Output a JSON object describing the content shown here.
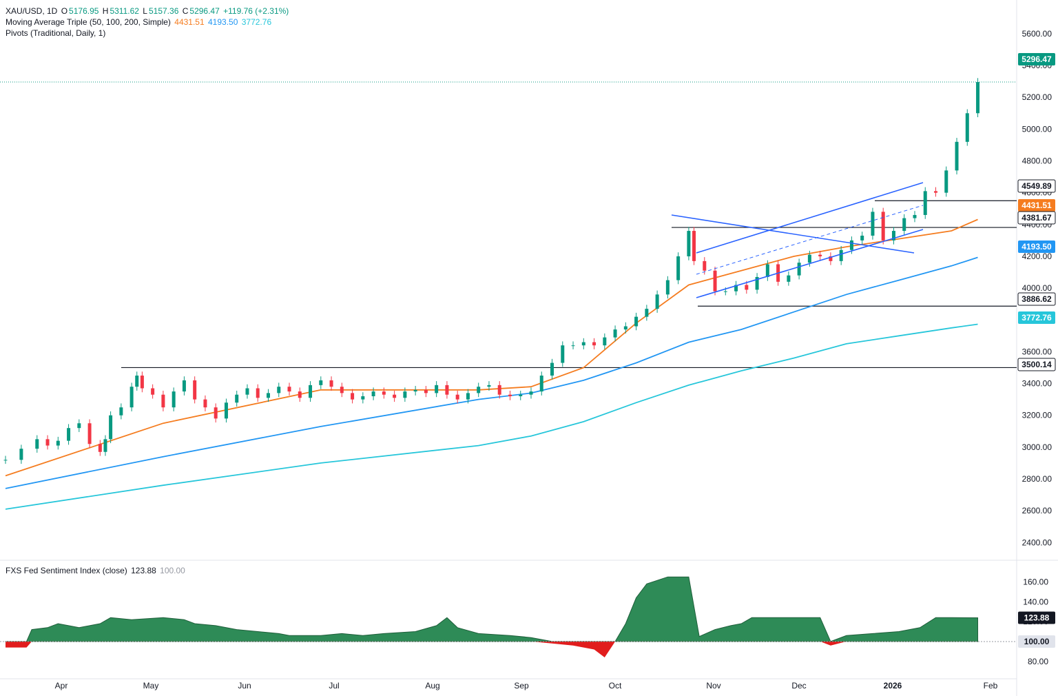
{
  "legend": {
    "symbol": "XAU/USD, 1D",
    "o_label": "O",
    "o": "5176.95",
    "h_label": "H",
    "h": "5311.62",
    "l_label": "L",
    "l": "5157.36",
    "c_label": "C",
    "c": "5296.47",
    "change": "+119.76 (+2.31%)",
    "ma_title": "Moving Average Triple (50, 100, 200, Simple)",
    "ma50": "4431.51",
    "ma100": "4193.50",
    "ma200": "3772.76",
    "pivots_title": "Pivots (Traditional, Daily, 1)"
  },
  "sentiment_legend": {
    "title": "FXS Fed Sentiment Index (close)",
    "value": "123.88",
    "baseline": "100.00"
  },
  "colors": {
    "up": "#089981",
    "down": "#f23645",
    "ma50": "#f57c1f",
    "ma100": "#2196f3",
    "ma200": "#26c6da",
    "trendline": "#2962ff",
    "sentiment_fill": "#2e8b57",
    "sentiment_neg": "#e11d1d"
  },
  "chart_data": [
    {
      "type": "line",
      "name": "price",
      "y_axis_ticks": [
        "5600.00",
        "5400.00",
        "5200.00",
        "5000.00",
        "4800.00",
        "4600.00",
        "4400.00",
        "4200.00",
        "4000.00",
        "3800.00",
        "3600.00",
        "3400.00",
        "3200.00",
        "3000.00",
        "2800.00",
        "2600.00",
        "2400.00"
      ],
      "ylim": [
        2345,
        5760
      ],
      "x_axis_labels": [
        "Apr",
        "May",
        "Jun",
        "Jul",
        "Aug",
        "Sep",
        "Oct",
        "Nov",
        "Dec",
        "2026",
        "Feb"
      ],
      "price_tags": [
        "5296.47",
        "4549.89",
        "4431.51",
        "4381.67",
        "4193.50",
        "3886.62",
        "3772.76",
        "3500.14"
      ],
      "series": [
        {
          "values": [
            [
              0,
              2920
            ],
            [
              3,
              2990
            ],
            [
              6,
              3050
            ],
            [
              8,
              3010
            ],
            [
              10,
              3040
            ],
            [
              12,
              3120
            ],
            [
              14,
              3150
            ],
            [
              16,
              3020
            ],
            [
              18,
              2970
            ],
            [
              19,
              3050
            ],
            [
              20,
              3200
            ],
            [
              22,
              3250
            ],
            [
              24,
              3380
            ],
            [
              25,
              3450
            ],
            [
              26,
              3370
            ],
            [
              28,
              3330
            ],
            [
              30,
              3250
            ],
            [
              32,
              3350
            ],
            [
              34,
              3420
            ],
            [
              36,
              3300
            ],
            [
              38,
              3250
            ],
            [
              40,
              3180
            ],
            [
              42,
              3280
            ],
            [
              44,
              3330
            ],
            [
              46,
              3370
            ],
            [
              48,
              3310
            ],
            [
              50,
              3340
            ],
            [
              52,
              3380
            ],
            [
              54,
              3350
            ],
            [
              56,
              3310
            ],
            [
              58,
              3390
            ],
            [
              60,
              3420
            ],
            [
              62,
              3380
            ],
            [
              64,
              3340
            ],
            [
              66,
              3300
            ],
            [
              68,
              3320
            ],
            [
              70,
              3350
            ],
            [
              72,
              3330
            ],
            [
              74,
              3310
            ],
            [
              76,
              3350
            ],
            [
              78,
              3360
            ],
            [
              80,
              3340
            ],
            [
              82,
              3390
            ],
            [
              84,
              3330
            ],
            [
              86,
              3300
            ],
            [
              88,
              3340
            ],
            [
              90,
              3380
            ],
            [
              92,
              3390
            ],
            [
              94,
              3330
            ],
            [
              96,
              3320
            ],
            [
              98,
              3330
            ],
            [
              100,
              3350
            ],
            [
              102,
              3450
            ],
            [
              104,
              3530
            ],
            [
              106,
              3640
            ],
            [
              108,
              3640
            ],
            [
              110,
              3660
            ],
            [
              112,
              3640
            ],
            [
              114,
              3690
            ],
            [
              116,
              3740
            ],
            [
              118,
              3760
            ],
            [
              120,
              3820
            ],
            [
              122,
              3870
            ],
            [
              124,
              3960
            ],
            [
              126,
              4050
            ],
            [
              128,
              4200
            ],
            [
              130,
              4360
            ],
            [
              131,
              4170
            ],
            [
              133,
              4110
            ],
            [
              135,
              3980
            ],
            [
              137,
              3980
            ],
            [
              139,
              4020
            ],
            [
              141,
              3990
            ],
            [
              143,
              4070
            ],
            [
              145,
              4150
            ],
            [
              147,
              4040
            ],
            [
              149,
              4080
            ],
            [
              151,
              4160
            ],
            [
              153,
              4210
            ],
            [
              155,
              4200
            ],
            [
              157,
              4170
            ],
            [
              159,
              4240
            ],
            [
              161,
              4300
            ],
            [
              163,
              4330
            ],
            [
              165,
              4480
            ],
            [
              167,
              4300
            ],
            [
              169,
              4360
            ],
            [
              171,
              4440
            ],
            [
              173,
              4460
            ],
            [
              175,
              4610
            ],
            [
              177,
              4600
            ],
            [
              179,
              4740
            ],
            [
              181,
              4920
            ],
            [
              183,
              5100
            ],
            [
              185,
              5296
            ]
          ],
          "color": "#131722"
        },
        {
          "name": "MA 50",
          "values": [
            [
              0,
              2820
            ],
            [
              30,
              3150
            ],
            [
              60,
              3360
            ],
            [
              90,
              3360
            ],
            [
              100,
              3380
            ],
            [
              110,
              3500
            ],
            [
              120,
              3780
            ],
            [
              130,
              4020
            ],
            [
              140,
              4110
            ],
            [
              150,
              4200
            ],
            [
              160,
              4260
            ],
            [
              170,
              4310
            ],
            [
              180,
              4360
            ],
            [
              185,
              4431.51
            ]
          ]
        },
        {
          "name": "MA 100",
          "values": [
            [
              0,
              2740
            ],
            [
              30,
              2940
            ],
            [
              60,
              3130
            ],
            [
              90,
              3300
            ],
            [
              100,
              3340
            ],
            [
              110,
              3420
            ],
            [
              120,
              3530
            ],
            [
              130,
              3660
            ],
            [
              140,
              3740
            ],
            [
              150,
              3850
            ],
            [
              160,
              3960
            ],
            [
              170,
              4050
            ],
            [
              180,
              4140
            ],
            [
              185,
              4193.5
            ]
          ]
        },
        {
          "name": "MA 200",
          "values": [
            [
              0,
              2610
            ],
            [
              30,
              2760
            ],
            [
              60,
              2900
            ],
            [
              90,
              3010
            ],
            [
              100,
              3070
            ],
            [
              110,
              3160
            ],
            [
              120,
              3280
            ],
            [
              130,
              3390
            ],
            [
              140,
              3480
            ],
            [
              150,
              3560
            ],
            [
              160,
              3650
            ],
            [
              170,
              3700
            ],
            [
              180,
              3750
            ],
            [
              185,
              3772.76
            ]
          ]
        }
      ],
      "levels": [
        4549.89,
        4381.67,
        3886.62,
        3500.14
      ],
      "last_price": 5296.47
    },
    {
      "type": "area",
      "name": "FXS Fed Sentiment Index",
      "y_axis_ticks": [
        "160.00",
        "140.00",
        "120.00",
        "100.00",
        "80.00"
      ],
      "ylim": [
        75,
        170
      ],
      "baseline": 100,
      "values": [
        [
          0,
          94
        ],
        [
          4,
          94
        ],
        [
          5,
          112
        ],
        [
          8,
          114
        ],
        [
          10,
          118
        ],
        [
          12,
          116
        ],
        [
          14,
          114
        ],
        [
          16,
          116
        ],
        [
          18,
          118
        ],
        [
          20,
          124
        ],
        [
          24,
          122
        ],
        [
          30,
          124
        ],
        [
          34,
          122
        ],
        [
          36,
          118
        ],
        [
          40,
          116
        ],
        [
          44,
          112
        ],
        [
          48,
          110
        ],
        [
          52,
          108
        ],
        [
          54,
          106
        ],
        [
          60,
          106
        ],
        [
          64,
          108
        ],
        [
          68,
          106
        ],
        [
          72,
          108
        ],
        [
          78,
          110
        ],
        [
          82,
          116
        ],
        [
          84,
          124
        ],
        [
          86,
          114
        ],
        [
          90,
          108
        ],
        [
          96,
          106
        ],
        [
          100,
          104
        ],
        [
          104,
          98
        ],
        [
          108,
          96
        ],
        [
          112,
          92
        ],
        [
          114,
          84
        ],
        [
          116,
          100
        ],
        [
          118,
          118
        ],
        [
          120,
          144
        ],
        [
          122,
          158
        ],
        [
          126,
          165
        ],
        [
          130,
          165
        ],
        [
          132,
          105
        ],
        [
          135,
          112
        ],
        [
          138,
          116
        ],
        [
          140,
          118
        ],
        [
          142,
          124
        ],
        [
          146,
          124
        ],
        [
          150,
          124
        ],
        [
          155,
          124
        ],
        [
          157,
          96
        ],
        [
          160,
          106
        ],
        [
          165,
          108
        ],
        [
          170,
          110
        ],
        [
          174,
          114
        ],
        [
          177,
          124
        ],
        [
          180,
          124
        ],
        [
          185,
          123.88
        ]
      ]
    }
  ]
}
